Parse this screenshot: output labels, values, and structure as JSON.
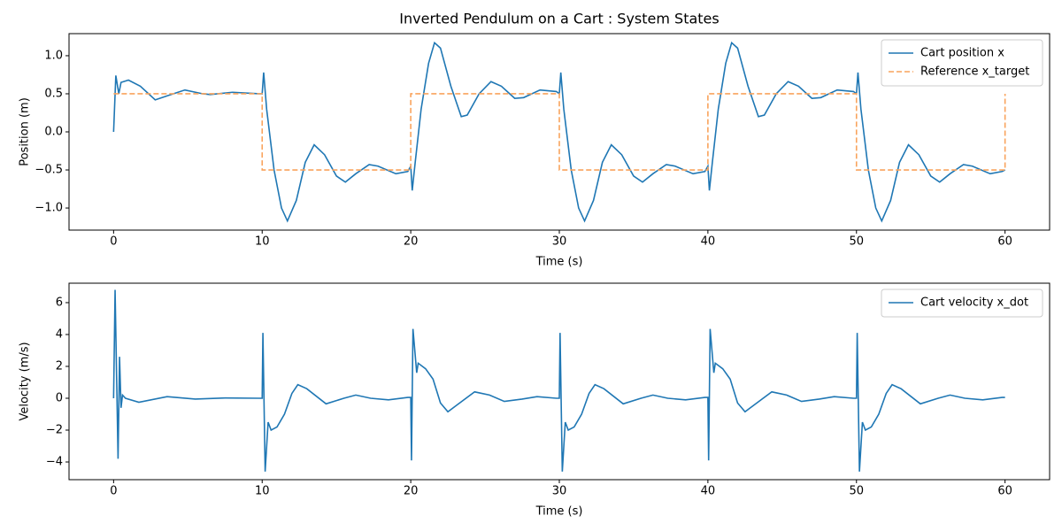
{
  "chart_data": [
    {
      "type": "line",
      "title": "Inverted Pendulum on a Cart : System States",
      "xlabel": "Time (s)",
      "ylabel": "Position (m)",
      "xlim": [
        -3,
        63
      ],
      "ylim": [
        -1.29,
        1.29
      ],
      "xticks": [
        0,
        10,
        20,
        30,
        40,
        50,
        60
      ],
      "yticks": [
        {
          "value": -1.0,
          "label": "−1.0"
        },
        {
          "value": -0.5,
          "label": "−0.5"
        },
        {
          "value": 0.0,
          "label": "0.0"
        },
        {
          "value": 0.5,
          "label": "0.5"
        },
        {
          "value": 1.0,
          "label": "1.0"
        }
      ],
      "grid": false,
      "legend": "upper right",
      "series": [
        {
          "name": "Cart position x",
          "color": "#1f77b4",
          "linestyle": "solid",
          "x": [
            0,
            0.15,
            0.35,
            0.5,
            1,
            1.8,
            2.8,
            3.7,
            4.8,
            6,
            6.5,
            8,
            9.8,
            10,
            10.1,
            10.3,
            10.8,
            11.3,
            11.7,
            12.3,
            12.9,
            13.5,
            14.2,
            15,
            15.6,
            16.3,
            17.2,
            17.8,
            19,
            19.8,
            20,
            20.1,
            20.3,
            20.7,
            21.2,
            21.6,
            22,
            22.7,
            23.4,
            23.8,
            24.6,
            25.4,
            26.1,
            27,
            27.6,
            28.7,
            29.8,
            30,
            30.1,
            30.3,
            30.8,
            31.3,
            31.7,
            32.3,
            32.9,
            33.5,
            34.2,
            35,
            35.6,
            36.3,
            37.2,
            37.8,
            39,
            39.8,
            40,
            40.1,
            40.3,
            40.7,
            41.2,
            41.6,
            42,
            42.7,
            43.4,
            43.8,
            44.6,
            45.4,
            46.1,
            47,
            47.6,
            48.7,
            49.8,
            50,
            50.1,
            50.3,
            50.8,
            51.3,
            51.7,
            52.3,
            52.9,
            53.5,
            54.2,
            55,
            55.6,
            56.3,
            57.2,
            57.8,
            59,
            59.8,
            60
          ],
          "values": [
            0,
            0.74,
            0.5,
            0.65,
            0.68,
            0.6,
            0.42,
            0.48,
            0.55,
            0.5,
            0.49,
            0.52,
            0.5,
            0.5,
            0.78,
            0.3,
            -0.5,
            -1.0,
            -1.17,
            -0.9,
            -0.4,
            -0.17,
            -0.3,
            -0.58,
            -0.66,
            -0.55,
            -0.43,
            -0.45,
            -0.55,
            -0.52,
            -0.45,
            -0.77,
            -0.4,
            0.3,
            0.9,
            1.17,
            1.1,
            0.6,
            0.2,
            0.22,
            0.5,
            0.66,
            0.6,
            0.44,
            0.45,
            0.55,
            0.53,
            0.5,
            0.78,
            0.3,
            -0.5,
            -1.0,
            -1.17,
            -0.9,
            -0.4,
            -0.17,
            -0.3,
            -0.58,
            -0.66,
            -0.55,
            -0.43,
            -0.45,
            -0.55,
            -0.52,
            -0.45,
            -0.77,
            -0.4,
            0.3,
            0.9,
            1.17,
            1.1,
            0.6,
            0.2,
            0.22,
            0.5,
            0.66,
            0.6,
            0.44,
            0.45,
            0.55,
            0.53,
            0.5,
            0.78,
            0.3,
            -0.5,
            -1.0,
            -1.17,
            -0.9,
            -0.4,
            -0.17,
            -0.3,
            -0.58,
            -0.66,
            -0.55,
            -0.43,
            -0.45,
            -0.55,
            -0.52,
            -0.5
          ]
        },
        {
          "name": "Reference x_target",
          "color": "#f9a35c",
          "linestyle": "dashed",
          "x": [
            0,
            10,
            10,
            20,
            20,
            30,
            30,
            40,
            40,
            50,
            50,
            60,
            60
          ],
          "values": [
            0.5,
            0.5,
            -0.5,
            -0.5,
            0.5,
            0.5,
            -0.5,
            -0.5,
            0.5,
            0.5,
            -0.5,
            -0.5,
            0.5
          ]
        }
      ]
    },
    {
      "type": "line",
      "xlabel": "Time (s)",
      "ylabel": "Velocity (m/s)",
      "xlim": [
        -3,
        63
      ],
      "ylim": [
        -5.11,
        7.22
      ],
      "xticks": [
        0,
        10,
        20,
        30,
        40,
        50,
        60
      ],
      "yticks": [
        {
          "value": -4,
          "label": "−4"
        },
        {
          "value": -2,
          "label": "−2"
        },
        0,
        2,
        4,
        6
      ],
      "grid": false,
      "legend": "upper right",
      "series": [
        {
          "name": "Cart velocity x_dot",
          "color": "#1f77b4",
          "linestyle": "solid",
          "x": [
            0,
            0.1,
            0.3,
            0.4,
            0.5,
            0.6,
            0.8,
            1.7,
            3.6,
            5.5,
            7.5,
            9.8,
            10,
            10.05,
            10.2,
            10.4,
            10.6,
            11,
            11.5,
            12,
            12.4,
            13,
            14.3,
            15.5,
            16.3,
            17.3,
            18.5,
            19.8,
            20,
            20.05,
            20.15,
            20.4,
            20.5,
            21,
            21.5,
            22,
            22.5,
            23,
            24.3,
            25.3,
            26.3,
            27.5,
            28.5,
            29.8,
            30,
            30.05,
            30.2,
            30.4,
            30.6,
            31,
            31.5,
            32,
            32.4,
            33,
            34.3,
            35.5,
            36.3,
            37.3,
            38.5,
            39.8,
            40,
            40.05,
            40.15,
            40.4,
            40.5,
            41,
            41.5,
            42,
            42.5,
            43,
            44.3,
            45.3,
            46.3,
            47.5,
            48.5,
            49.8,
            50,
            50.05,
            50.2,
            50.4,
            50.6,
            51,
            51.5,
            52,
            52.4,
            53,
            54.3,
            55.5,
            56.3,
            57.3,
            58.5,
            59.8,
            60
          ],
          "values": [
            0,
            6.8,
            -3.8,
            2.6,
            -0.6,
            0.2,
            0,
            -0.25,
            0.1,
            -0.05,
            0.02,
            0,
            0,
            4.1,
            -4.6,
            -1.5,
            -2.0,
            -1.8,
            -1.0,
            0.3,
            0.85,
            0.6,
            -0.35,
            0,
            0.2,
            0,
            -0.1,
            0.05,
            0.05,
            -3.9,
            4.35,
            1.6,
            2.2,
            1.85,
            1.2,
            -0.3,
            -0.85,
            -0.5,
            0.4,
            0.2,
            -0.2,
            -0.05,
            0.1,
            0,
            0,
            4.1,
            -4.6,
            -1.5,
            -2.0,
            -1.8,
            -1.0,
            0.3,
            0.85,
            0.6,
            -0.35,
            0,
            0.2,
            0,
            -0.1,
            0.05,
            0.05,
            -3.9,
            4.35,
            1.6,
            2.2,
            1.85,
            1.2,
            -0.3,
            -0.85,
            -0.5,
            0.4,
            0.2,
            -0.2,
            -0.05,
            0.1,
            0,
            0,
            4.1,
            -4.6,
            -1.5,
            -2.0,
            -1.8,
            -1.0,
            0.3,
            0.85,
            0.6,
            -0.35,
            0,
            0.2,
            0,
            -0.1,
            0.05,
            0.05
          ]
        }
      ]
    }
  ]
}
